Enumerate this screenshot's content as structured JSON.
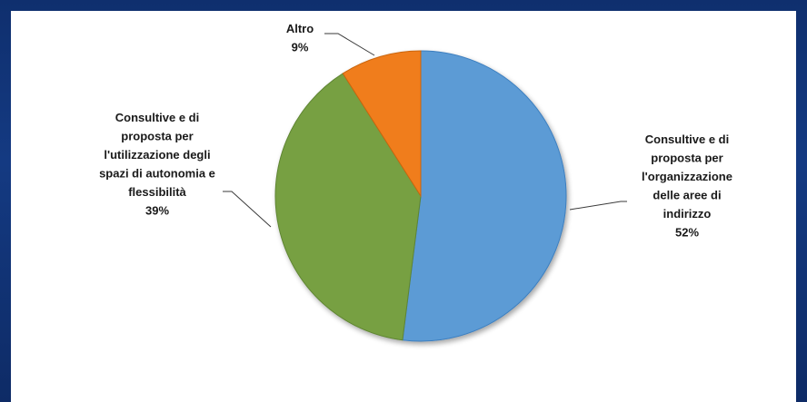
{
  "chart_data": {
    "type": "pie",
    "title": "",
    "start_angle_deg": 0,
    "direction": "clockwise",
    "slices": [
      {
        "label_lines": [
          "Consultive e di",
          "proposta per",
          "l'organizzazione",
          "delle aree di",
          "indirizzo"
        ],
        "value": 52,
        "value_label": "52%",
        "color": "#5b9bd5",
        "edge_color": "#3e7fbf",
        "label_side": "right"
      },
      {
        "label_lines": [
          "Consultive e di",
          "proposta per",
          "l'utilizzazione degli",
          "spazi di autonomia e",
          "flessibilità"
        ],
        "value": 39,
        "value_label": "39%",
        "color": "#77a043",
        "edge_color": "#5f8533",
        "label_side": "left"
      },
      {
        "label_lines": [
          "Altro"
        ],
        "value": 9,
        "value_label": "9%",
        "color": "#f07d1c",
        "edge_color": "#c9650f",
        "label_side": "top"
      }
    ],
    "legend": "none",
    "background": "#ffffff",
    "frame_color": "#133a82"
  }
}
